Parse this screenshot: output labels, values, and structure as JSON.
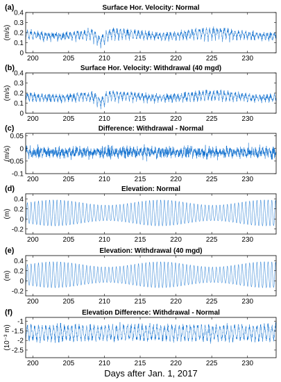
{
  "figure": {
    "xlabel": "Days after Jan. 1, 2017",
    "line_color": "#0066cc"
  },
  "chart_data": [
    {
      "type": "line",
      "panel": "(a)",
      "title": "Surface Hor. Velocity: Normal",
      "ylabel": "(m/s)",
      "xlim": [
        199,
        234
      ],
      "ylim": [
        0,
        0.4
      ],
      "xticks": [
        200,
        205,
        210,
        215,
        220,
        225,
        230
      ],
      "yticks": [
        0,
        0.1,
        0.2,
        0.3,
        0.4
      ],
      "ytick_labels": [
        "0",
        "0.1",
        "0.2",
        "0.3",
        "0.4"
      ],
      "series": [
        {
          "signal": "velocity",
          "baseline": 0.13,
          "amplitude": 0.1,
          "period_days": 0.5,
          "noise": 0.04,
          "dip_day": 209.5,
          "dip_depth": 0.07
        }
      ]
    },
    {
      "type": "line",
      "panel": "(b)",
      "title": "Surface Hor. Velocity: Withdrawal (40 mgd)",
      "ylabel": "(m/s)",
      "xlim": [
        199,
        234
      ],
      "ylim": [
        0,
        0.4
      ],
      "xticks": [
        200,
        205,
        210,
        215,
        220,
        225,
        230
      ],
      "yticks": [
        0,
        0.1,
        0.2,
        0.3,
        0.4
      ],
      "ytick_labels": [
        "0",
        "0.1",
        "0.2",
        "0.3",
        "0.4"
      ],
      "series": [
        {
          "signal": "velocity",
          "baseline": 0.12,
          "amplitude": 0.09,
          "period_days": 0.5,
          "noise": 0.04,
          "dip_day": 209.5,
          "dip_depth": 0.06
        }
      ]
    },
    {
      "type": "line",
      "panel": "(c)",
      "title": "Difference: Withdrawal - Normal",
      "ylabel": "(m/s)",
      "xlim": [
        199,
        234
      ],
      "ylim": [
        -0.1,
        0.06
      ],
      "xticks": [
        200,
        205,
        210,
        215,
        220,
        225,
        230
      ],
      "yticks": [
        -0.1,
        -0.05,
        0,
        0.05
      ],
      "ytick_labels": [
        "-0.1",
        "-0.05",
        "0",
        "0.05"
      ],
      "series": [
        {
          "signal": "noise",
          "baseline": -0.015,
          "amplitude": 0.022,
          "period_days": 0.5,
          "noise": 0.03
        }
      ]
    },
    {
      "type": "line",
      "panel": "(d)",
      "title": "Elevation: Normal",
      "ylabel": "(m)",
      "xlim": [
        199,
        234
      ],
      "ylim": [
        -0.3,
        0.5
      ],
      "xticks": [
        200,
        205,
        210,
        215,
        220,
        225,
        230
      ],
      "yticks": [
        -0.2,
        0,
        0.2,
        0.4
      ],
      "ytick_labels": [
        "-0.2",
        "0",
        "0.2",
        "0.4"
      ],
      "series": [
        {
          "signal": "tide",
          "baseline": 0.1,
          "amplitude": 0.26,
          "period_days": 0.5175,
          "modulation_days": 14.77
        }
      ]
    },
    {
      "type": "line",
      "panel": "(e)",
      "title": "Elevation: Withdrawal (40 mgd)",
      "ylabel": "(m)",
      "xlim": [
        199,
        234
      ],
      "ylim": [
        -0.3,
        0.5
      ],
      "xticks": [
        200,
        205,
        210,
        215,
        220,
        225,
        230
      ],
      "yticks": [
        -0.2,
        0,
        0.2,
        0.4
      ],
      "ytick_labels": [
        "-0.2",
        "0",
        "0.2",
        "0.4"
      ],
      "series": [
        {
          "signal": "tide",
          "baseline": 0.1,
          "amplitude": 0.26,
          "period_days": 0.5175,
          "modulation_days": 14.77
        }
      ]
    },
    {
      "type": "line",
      "panel": "(f)",
      "title": "Elevation Difference: Withdrawal - Normal",
      "ylabel": "(10⁻³ m)",
      "xlim": [
        199,
        234
      ],
      "ylim": [
        -2.9,
        -0.8
      ],
      "xticks": [
        200,
        205,
        210,
        215,
        220,
        225,
        230
      ],
      "yticks": [
        -2.5,
        -2,
        -1.5,
        -1
      ],
      "ytick_labels": [
        "-2.5",
        "-2",
        "-1.5",
        "-1"
      ],
      "series": [
        {
          "signal": "tide-noise",
          "baseline": -1.6,
          "amplitude": 0.35,
          "period_days": 0.5175,
          "noise": 0.25
        }
      ]
    }
  ]
}
